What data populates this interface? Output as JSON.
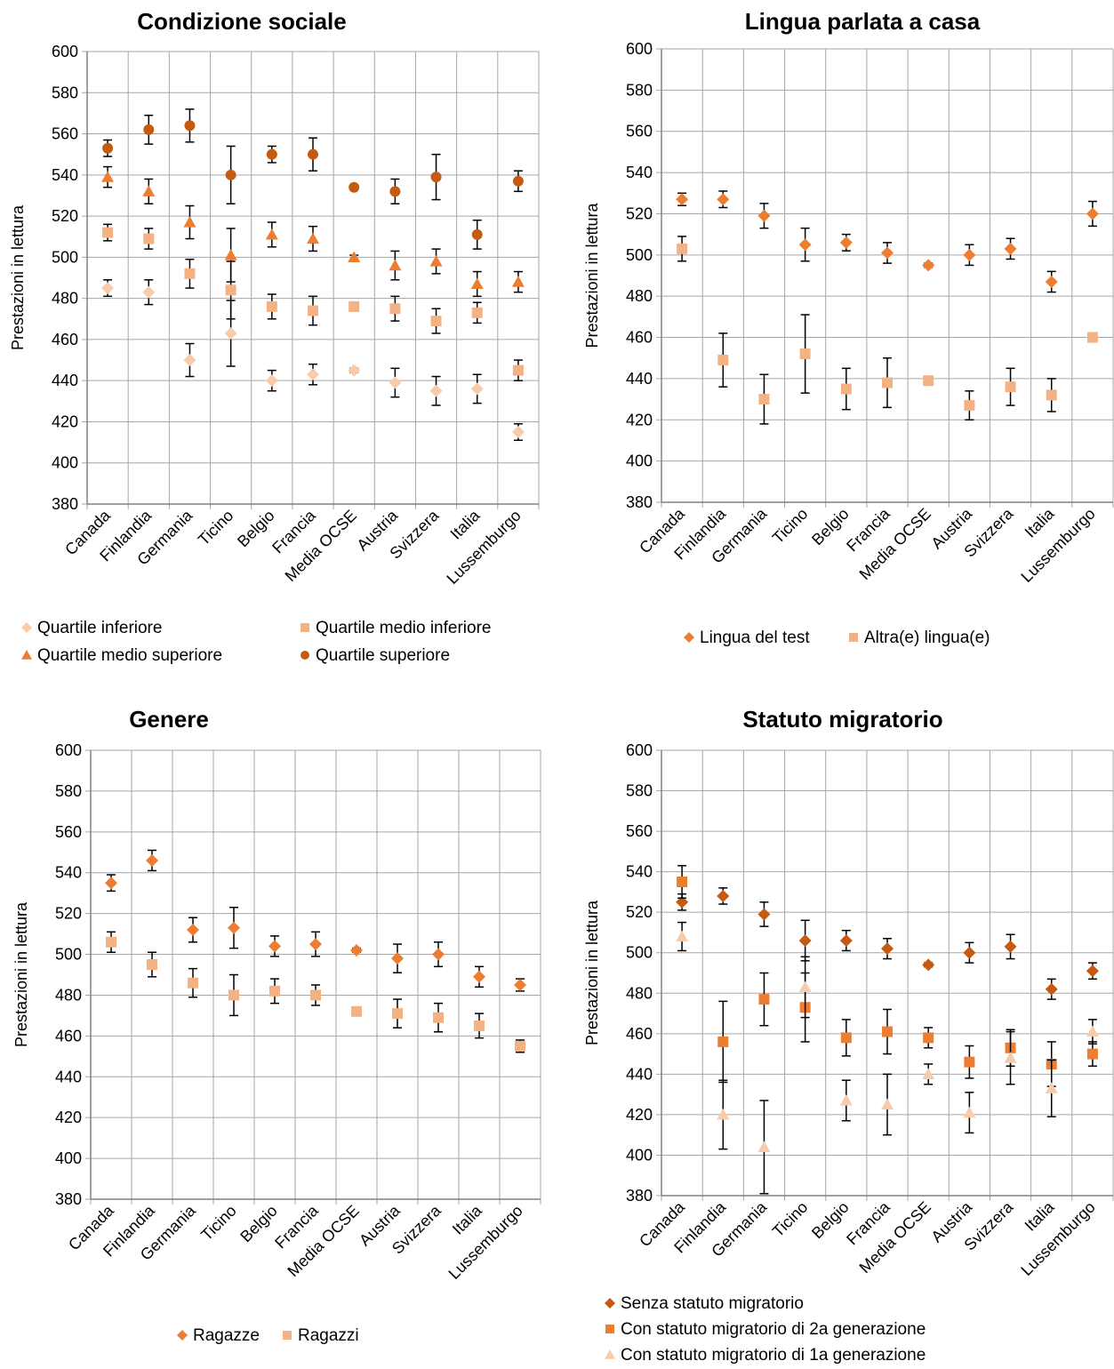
{
  "colors": {
    "rose": "#F8CBAD",
    "salmon": "#F4B183",
    "orange": "#ED7D31",
    "brown": "#C55A11",
    "grid": "#A6A6A6",
    "axis": "#808080",
    "errorbar": "#000000"
  },
  "chart_data": [
    {
      "type": "scatter",
      "title": "Condizione sociale",
      "ylabel": "Prestazioni in lettura",
      "ylim": [
        380,
        600
      ],
      "ytick_step": 20,
      "categories": [
        "Canada",
        "Finlandia",
        "Germania",
        "Ticino",
        "Belgio",
        "Francia",
        "Media OCSE",
        "Austria",
        "Svizzera",
        "Italia",
        "Lussemburgo"
      ],
      "legend_layout": "two-column grid below plot",
      "series": [
        {
          "name": "Quartile inferiore",
          "marker": "diamond",
          "color": "#F8CBAD",
          "values": [
            485,
            483,
            450,
            463,
            440,
            443,
            445,
            439,
            435,
            436,
            415
          ],
          "errors": [
            4,
            6,
            8,
            16,
            5,
            5,
            1,
            7,
            7,
            7,
            4
          ]
        },
        {
          "name": "Quartile medio inferiore",
          "marker": "square",
          "color": "#F4B183",
          "values": [
            512,
            509,
            492,
            484,
            476,
            474,
            476,
            475,
            469,
            473,
            445
          ],
          "errors": [
            4,
            5,
            7,
            14,
            6,
            7,
            1,
            6,
            6,
            5,
            5
          ]
        },
        {
          "name": "Quartile medio superiore",
          "marker": "triangle",
          "color": "#ED7D31",
          "values": [
            539,
            532,
            517,
            501,
            511,
            509,
            500,
            496,
            498,
            487,
            488
          ],
          "errors": [
            5,
            6,
            8,
            13,
            6,
            6,
            1,
            7,
            6,
            6,
            5
          ]
        },
        {
          "name": "Quartile superiore",
          "marker": "circle",
          "color": "#C55A11",
          "values": [
            553,
            562,
            564,
            540,
            550,
            550,
            534,
            532,
            539,
            511,
            537
          ],
          "errors": [
            4,
            7,
            8,
            14,
            4,
            8,
            1,
            6,
            11,
            7,
            5
          ]
        }
      ]
    },
    {
      "type": "scatter",
      "title": "Lingua parlata a casa",
      "ylabel": "Prestazioni in lettura",
      "ylim": [
        380,
        600
      ],
      "ytick_step": 20,
      "categories": [
        "Canada",
        "Finlandia",
        "Germania",
        "Ticino",
        "Belgio",
        "Francia",
        "Media OCSE",
        "Austria",
        "Svizzera",
        "Italia",
        "Lussemburgo"
      ],
      "legend_layout": "single row below plot",
      "series": [
        {
          "name": "Lingua del test",
          "marker": "diamond",
          "color": "#ED7D31",
          "values": [
            527,
            527,
            519,
            505,
            506,
            501,
            495,
            500,
            503,
            487,
            520
          ],
          "errors": [
            3,
            4,
            6,
            8,
            4,
            5,
            1,
            5,
            5,
            5,
            6
          ]
        },
        {
          "name": "Altra(e) lingua(e)",
          "marker": "square",
          "color": "#F4B183",
          "values": [
            503,
            449,
            430,
            452,
            435,
            438,
            439,
            427,
            436,
            432,
            460
          ],
          "errors": [
            6,
            13,
            12,
            19,
            10,
            12,
            1,
            7,
            9,
            8,
            2
          ]
        }
      ]
    },
    {
      "type": "scatter",
      "title": "Genere",
      "ylabel": "Prestazioni in lettura",
      "ylim": [
        380,
        600
      ],
      "ytick_step": 20,
      "categories": [
        "Canada",
        "Finlandia",
        "Germania",
        "Ticino",
        "Belgio",
        "Francia",
        "Media OCSE",
        "Austria",
        "Svizzera",
        "Italia",
        "Lussemburgo"
      ],
      "legend_layout": "single row below plot",
      "series": [
        {
          "name": "Ragazze",
          "marker": "diamond",
          "color": "#ED7D31",
          "values": [
            535,
            546,
            512,
            513,
            504,
            505,
            502,
            498,
            500,
            489,
            485
          ],
          "errors": [
            4,
            5,
            6,
            10,
            5,
            6,
            1,
            7,
            6,
            5,
            3
          ]
        },
        {
          "name": "Ragazzi",
          "marker": "square",
          "color": "#F4B183",
          "values": [
            506,
            495,
            486,
            480,
            482,
            480,
            472,
            471,
            469,
            465,
            455
          ],
          "errors": [
            5,
            6,
            7,
            10,
            6,
            5,
            1,
            7,
            7,
            6,
            3
          ]
        }
      ]
    },
    {
      "type": "scatter",
      "title": "Statuto migratorio",
      "ylabel": "Prestazioni in lettura",
      "ylim": [
        380,
        600
      ],
      "ytick_step": 20,
      "categories": [
        "Canada",
        "Finlandia",
        "Germania",
        "Ticino",
        "Belgio",
        "Francia",
        "Media OCSE",
        "Austria",
        "Svizzera",
        "Italia",
        "Lussemburgo"
      ],
      "legend_layout": "stacked list below plot",
      "series": [
        {
          "name": "Senza statuto migratorio",
          "marker": "diamond",
          "color": "#C55A11",
          "values": [
            525,
            528,
            519,
            506,
            506,
            502,
            494,
            500,
            503,
            482,
            491
          ],
          "errors": [
            4,
            4,
            6,
            10,
            5,
            5,
            1,
            5,
            6,
            5,
            4
          ]
        },
        {
          "name": "Con statuto migratorio di 2a generazione",
          "marker": "square",
          "color": "#ED7D31",
          "values": [
            535,
            456,
            477,
            473,
            458,
            461,
            458,
            446,
            453,
            445,
            450
          ],
          "errors": [
            8,
            20,
            13,
            17,
            9,
            11,
            5,
            8,
            9,
            11,
            6
          ]
        },
        {
          "name": "Con statuto migratorio di 1a generazione",
          "marker": "triangle",
          "color": "#F8CBAD",
          "values": [
            508,
            420,
            404,
            483,
            427,
            425,
            440,
            421,
            448,
            433,
            461
          ],
          "errors": [
            7,
            17,
            23,
            15,
            10,
            15,
            5,
            10,
            13,
            14,
            6
          ]
        }
      ]
    }
  ]
}
